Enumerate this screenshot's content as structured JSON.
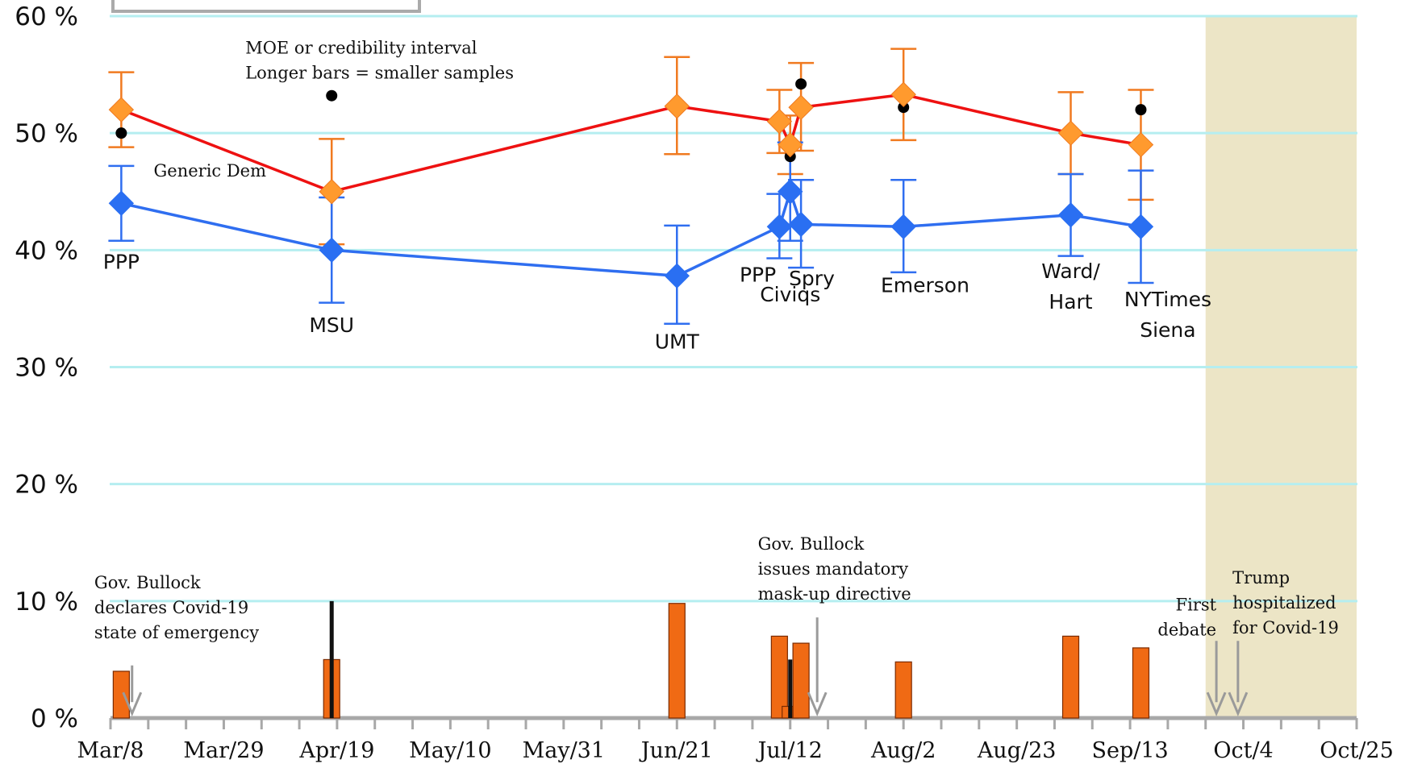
{
  "chart_data": {
    "type": "line",
    "x_axis": {
      "tick_labels": [
        "Mar/8",
        "Mar/29",
        "Apr/19",
        "May/10",
        "May/31",
        "Jun/21",
        "Jul/12",
        "Aug/2",
        "Aug/23",
        "Sep/13",
        "Oct/4",
        "Oct/25"
      ],
      "range": [
        "2020-03-08",
        "2020-10-25"
      ]
    },
    "y_axis": {
      "tick_labels": [
        "0 %",
        "10 %",
        "20 %",
        "30 %",
        "40 %",
        "50 %",
        "60 %"
      ],
      "range": [
        0,
        60
      ],
      "unit": "%"
    },
    "grid": true,
    "shaded_region": {
      "from": "2020-09-27",
      "to": "2020-10-25",
      "color": "#ece5c6"
    },
    "colors": {
      "rep_line": "#ee1111",
      "rep_marker": "#ff9a2e",
      "rep_errorbar": "#f07a20",
      "dem_line": "#2f6ef0",
      "dem_marker": "#2a6ff2",
      "bar_fill": "#f06a14",
      "actual_result_dot": "#000000",
      "grid": "#b5eef0"
    },
    "series": [
      {
        "line": "red",
        "points": [
          {
            "date": "2020-03-10",
            "value": 52,
            "low": 48.8,
            "high": 55.2
          },
          {
            "date": "2020-04-18",
            "value": 45,
            "low": 40.5,
            "high": 49.5
          },
          {
            "date": "2020-06-21",
            "value": 52.3,
            "low": 48.2,
            "high": 56.5
          },
          {
            "date": "2020-07-10",
            "value": 51,
            "low": 48.3,
            "high": 53.7
          },
          {
            "date": "2020-07-12",
            "value": 49,
            "low": 46.5,
            "high": 51.5
          },
          {
            "date": "2020-07-14",
            "value": 52.2,
            "low": 48.5,
            "high": 56
          },
          {
            "date": "2020-08-02",
            "value": 53.3,
            "low": 49.4,
            "high": 57.2
          },
          {
            "date": "2020-09-02",
            "value": 50,
            "low": 46.5,
            "high": 53.5
          },
          {
            "date": "2020-09-15",
            "value": 49,
            "low": 44.3,
            "high": 53.7
          }
        ]
      },
      {
        "line": "blue",
        "label": "Generic Dem",
        "points": [
          {
            "date": "2020-03-10",
            "value": 44,
            "low": 40.8,
            "high": 47.2
          },
          {
            "date": "2020-04-18",
            "value": 40,
            "low": 35.5,
            "high": 44.5
          },
          {
            "date": "2020-06-21",
            "value": 37.8,
            "low": 33.7,
            "high": 42.1
          },
          {
            "date": "2020-07-10",
            "value": 42,
            "low": 39.3,
            "high": 44.8
          },
          {
            "date": "2020-07-12",
            "value": 45,
            "low": 40.8,
            "high": 49.2
          },
          {
            "date": "2020-07-14",
            "value": 42.2,
            "low": 38.5,
            "high": 46
          },
          {
            "date": "2020-08-02",
            "value": 42,
            "low": 38.1,
            "high": 46
          },
          {
            "date": "2020-09-02",
            "value": 43,
            "low": 39.5,
            "high": 46.5
          },
          {
            "date": "2020-09-15",
            "value": 42,
            "low": 37.2,
            "high": 46.8
          }
        ]
      }
    ],
    "dots": [
      {
        "date": "2020-03-10",
        "value": 50
      },
      {
        "date": "2020-04-18",
        "value": 53.2
      },
      {
        "date": "2020-07-10",
        "value": 51
      },
      {
        "date": "2020-07-12",
        "value": 48
      },
      {
        "date": "2020-07-14",
        "value": 54.2
      },
      {
        "date": "2020-08-02",
        "value": 52.2
      },
      {
        "date": "2020-09-15",
        "value": 52
      }
    ],
    "bars": [
      {
        "date": "2020-03-10",
        "value": 4
      },
      {
        "date": "2020-04-18",
        "value": 5
      },
      {
        "date": "2020-06-21",
        "value": 9.8
      },
      {
        "date": "2020-07-10",
        "value": 7
      },
      {
        "date": "2020-07-12",
        "value": 1
      },
      {
        "date": "2020-07-14",
        "value": 6.4
      },
      {
        "date": "2020-08-02",
        "value": 4.8
      },
      {
        "date": "2020-09-02",
        "value": 7
      },
      {
        "date": "2020-09-15",
        "value": 6
      }
    ],
    "black_bars": [
      {
        "date": "2020-04-18",
        "value": 10
      },
      {
        "date": "2020-07-12",
        "value": 5
      }
    ],
    "pollster_labels": [
      {
        "lines": [
          "PPP"
        ],
        "date": "2020-03-10",
        "value": 38.4
      },
      {
        "lines": [
          "MSU"
        ],
        "date": "2020-04-18",
        "value": 33
      },
      {
        "lines": [
          "UMT"
        ],
        "date": "2020-06-21",
        "value": 31.6
      },
      {
        "lines": [
          "PPP"
        ],
        "date": "2020-07-06",
        "value": 37.3
      },
      {
        "lines": [
          "Spry"
        ],
        "date": "2020-07-16",
        "value": 37
      },
      {
        "lines": [
          "Civiqs"
        ],
        "date": "2020-07-12",
        "value": 35.6
      },
      {
        "lines": [
          "Emerson"
        ],
        "date": "2020-08-06",
        "value": 36.4
      },
      {
        "lines": [
          "Ward/",
          "Hart"
        ],
        "date": "2020-09-02",
        "value": 37.6
      },
      {
        "lines": [
          "NYTimes",
          "Siena"
        ],
        "date": "2020-09-20",
        "value": 35.2
      }
    ],
    "annotations": [
      {
        "lines": [
          "MOE or credibility interval",
          "Longer bars = smaller samples"
        ],
        "date": "2020-04-02",
        "value": 56.8,
        "anchor": "start"
      },
      {
        "lines": [
          "Generic Dem"
        ],
        "date": "2020-03-16",
        "value": 46.3,
        "anchor": "start"
      },
      {
        "lines": [
          "Gov. Bullock",
          "declares Covid-19",
          "state of emergency"
        ],
        "date": "2020-03-05",
        "value": 11.1,
        "anchor": "start"
      },
      {
        "lines": [
          "Gov. Bullock",
          "issues mandatory",
          "mask-up directive"
        ],
        "date": "2020-07-06",
        "value": 14.4,
        "anchor": "start"
      },
      {
        "lines": [
          "First",
          "debate"
        ],
        "date": "2020-09-29",
        "value": 9.2,
        "anchor": "end"
      },
      {
        "lines": [
          "Trump",
          "hospitalized",
          "for Covid-19"
        ],
        "date": "2020-10-02",
        "value": 11.5,
        "anchor": "start"
      }
    ],
    "event_arrows": [
      {
        "date": "2020-03-12",
        "from": 4.5,
        "to": 0.4
      },
      {
        "date": "2020-07-17",
        "from": 8.6,
        "to": 0.4
      },
      {
        "date": "2020-09-29",
        "from": 6.6,
        "to": 0.4
      },
      {
        "date": "2020-10-03",
        "from": 6.6,
        "to": 0.4
      }
    ]
  }
}
